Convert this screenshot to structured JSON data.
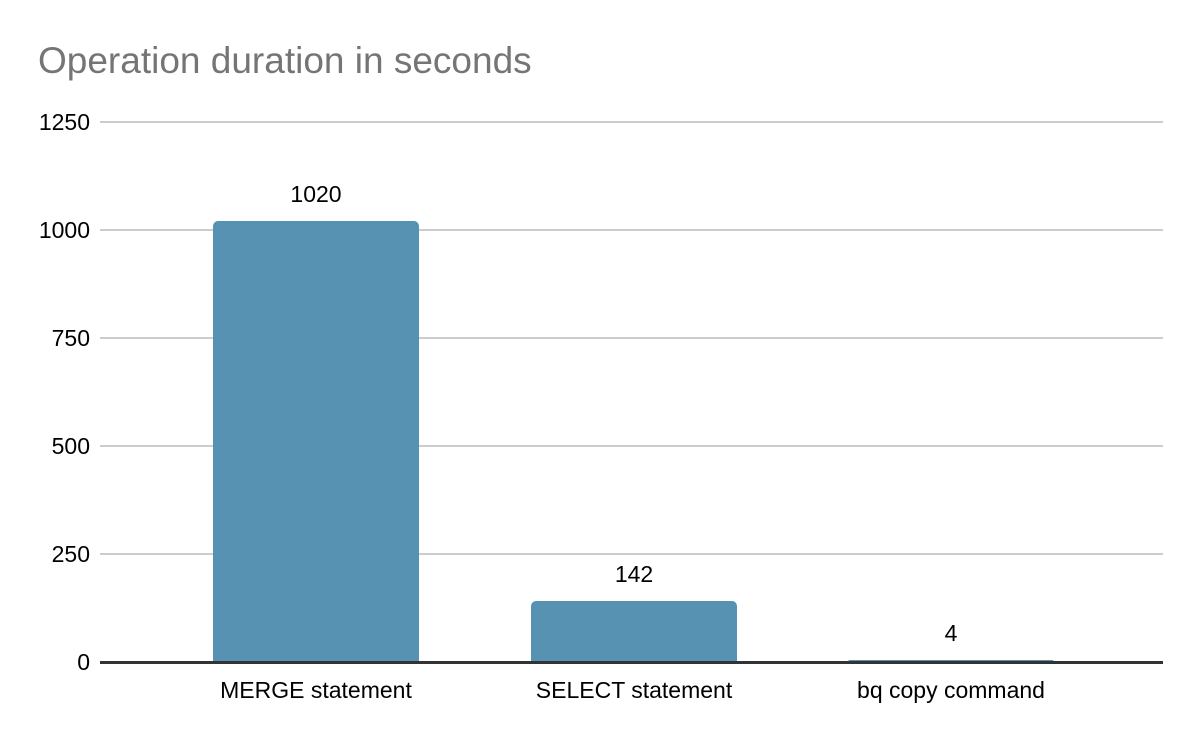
{
  "chart_data": {
    "type": "bar",
    "title": "Operation duration in seconds",
    "categories": [
      "MERGE statement",
      "SELECT statement",
      "bq copy command"
    ],
    "values": [
      1020,
      142,
      4
    ],
    "value_labels": [
      "1020",
      "142",
      "4"
    ],
    "xlabel": "",
    "ylabel": "",
    "ylim": [
      0,
      1250
    ],
    "yticks": [
      0,
      250,
      500,
      750,
      1000,
      1250
    ],
    "grid": true,
    "legend": "none",
    "colors": {
      "bar": "#5792b3",
      "gridline": "#cccccc",
      "axis_line": "#333333",
      "title_text": "#757575",
      "label_text": "#000000",
      "background": "#ffffff"
    }
  }
}
